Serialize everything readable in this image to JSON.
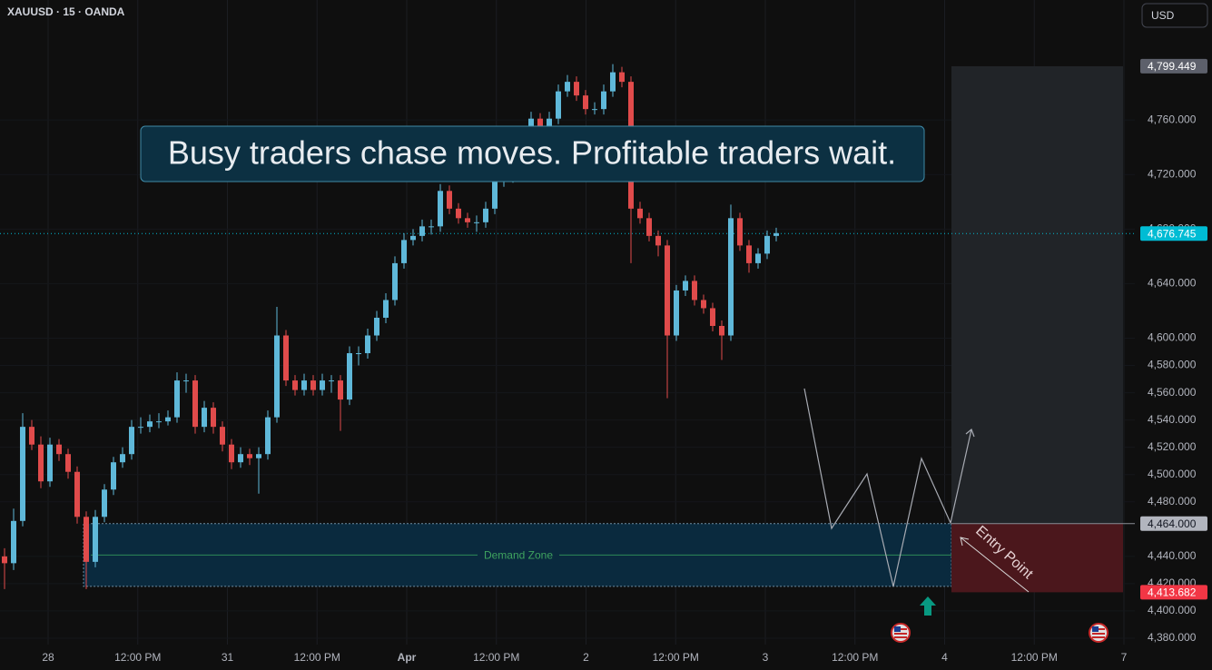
{
  "header": {
    "symbol": "XAUUSD · 15 · OANDA",
    "currency": "USD"
  },
  "headline": "Busy traders chase moves. Profitable traders wait.",
  "chart_data": {
    "type": "candlestick",
    "up_color": "#5fb8d9",
    "down_color": "#e04b4b",
    "ylim": [
      4370,
      4848
    ],
    "yticks": [
      {
        "value": 4380,
        "label": "4,380.000"
      },
      {
        "value": 4400,
        "label": "4,400.000"
      },
      {
        "value": 4420,
        "label": "4,420.000"
      },
      {
        "value": 4440,
        "label": "4,440.000"
      },
      {
        "value": 4480,
        "label": "4,480.000"
      },
      {
        "value": 4500,
        "label": "4,500.000"
      },
      {
        "value": 4520,
        "label": "4,520.000"
      },
      {
        "value": 4540,
        "label": "4,540.000"
      },
      {
        "value": 4560,
        "label": "4,560.000"
      },
      {
        "value": 4580,
        "label": "4,580.000"
      },
      {
        "value": 4600,
        "label": "4,600.000"
      },
      {
        "value": 4640,
        "label": "4,640.000"
      },
      {
        "value": 4680,
        "label": "4,680.000"
      },
      {
        "value": 4720,
        "label": "4,720.000"
      },
      {
        "value": 4760,
        "label": "4,760.000"
      }
    ],
    "x_labels": [
      "28",
      "12:00 PM",
      "31",
      "12:00 PM",
      "Apr",
      "12:00 PM",
      "2",
      "12:00 PM",
      "3",
      "12:00 PM",
      "4",
      "12:00 PM",
      "7"
    ],
    "grid": true,
    "current_price": {
      "value": 4676.745,
      "label": "4,676.745"
    },
    "target": {
      "value": 4799.449,
      "label": "4,799.449"
    },
    "entry": {
      "value": 4464,
      "label": "4,464.000"
    },
    "stop": {
      "value": 4413.682,
      "label": "4,413.682"
    },
    "entry_label": "Entry Point",
    "demand_zone": {
      "label": "Demand Zone",
      "top": 4464,
      "bottom": 4418
    },
    "ohlc": [
      [
        4440,
        4446,
        4416,
        4435
      ],
      [
        4435,
        4475,
        4430,
        4466
      ],
      [
        4466,
        4545,
        4462,
        4535
      ],
      [
        4535,
        4540,
        4518,
        4522
      ],
      [
        4522,
        4528,
        4490,
        4495
      ],
      [
        4495,
        4527,
        4491,
        4522
      ],
      [
        4522,
        4526,
        4510,
        4515
      ],
      [
        4515,
        4519,
        4497,
        4502
      ],
      [
        4502,
        4506,
        4464,
        4469
      ],
      [
        4469,
        4473,
        4416,
        4436
      ],
      [
        4436,
        4474,
        4432,
        4469
      ],
      [
        4469,
        4493,
        4465,
        4489
      ],
      [
        4489,
        4513,
        4485,
        4509
      ],
      [
        4509,
        4520,
        4505,
        4515
      ],
      [
        4515,
        4540,
        4511,
        4535
      ],
      [
        4535,
        4542,
        4530,
        4535
      ],
      [
        4535,
        4544,
        4531,
        4539
      ],
      [
        4539,
        4545,
        4534,
        4539
      ],
      [
        4539,
        4547,
        4536,
        4542
      ],
      [
        4542,
        4575,
        4538,
        4569
      ],
      [
        4569,
        4574,
        4560,
        4569
      ],
      [
        4569,
        4573,
        4530,
        4535
      ],
      [
        4535,
        4554,
        4531,
        4549
      ],
      [
        4549,
        4553,
        4530,
        4535
      ],
      [
        4535,
        4539,
        4517,
        4522
      ],
      [
        4522,
        4526,
        4504,
        4509
      ],
      [
        4509,
        4520,
        4505,
        4515
      ],
      [
        4515,
        4519,
        4507,
        4512
      ],
      [
        4512,
        4520,
        4486,
        4515
      ],
      [
        4515,
        4547,
        4511,
        4542
      ],
      [
        4542,
        4623,
        4538,
        4602
      ],
      [
        4602,
        4606,
        4565,
        4569
      ],
      [
        4569,
        4573,
        4558,
        4562
      ],
      [
        4562,
        4574,
        4558,
        4569
      ],
      [
        4569,
        4573,
        4558,
        4562
      ],
      [
        4562,
        4574,
        4558,
        4569
      ],
      [
        4569,
        4573,
        4560,
        4569
      ],
      [
        4569,
        4573,
        4532,
        4555
      ],
      [
        4555,
        4594,
        4551,
        4589
      ],
      [
        4589,
        4594,
        4580,
        4589
      ],
      [
        4589,
        4607,
        4585,
        4602
      ],
      [
        4602,
        4620,
        4598,
        4615
      ],
      [
        4615,
        4633,
        4611,
        4628
      ],
      [
        4628,
        4660,
        4624,
        4655
      ],
      [
        4655,
        4677,
        4651,
        4672
      ],
      [
        4672,
        4680,
        4668,
        4675
      ],
      [
        4675,
        4687,
        4671,
        4682
      ],
      [
        4682,
        4687,
        4676,
        4682
      ],
      [
        4682,
        4713,
        4678,
        4708
      ],
      [
        4708,
        4712,
        4691,
        4695
      ],
      [
        4695,
        4699,
        4684,
        4688
      ],
      [
        4688,
        4692,
        4681,
        4685
      ],
      [
        4685,
        4690,
        4678,
        4685
      ],
      [
        4685,
        4700,
        4681,
        4695
      ],
      [
        4695,
        4720,
        4691,
        4715
      ],
      [
        4715,
        4723,
        4711,
        4718
      ],
      [
        4718,
        4733,
        4714,
        4728
      ],
      [
        4728,
        4747,
        4724,
        4742
      ],
      [
        4742,
        4766,
        4738,
        4761
      ],
      [
        4761,
        4765,
        4750,
        4755
      ],
      [
        4755,
        4766,
        4751,
        4761
      ],
      [
        4761,
        4786,
        4757,
        4781
      ],
      [
        4781,
        4793,
        4777,
        4788
      ],
      [
        4788,
        4792,
        4774,
        4778
      ],
      [
        4778,
        4782,
        4764,
        4768
      ],
      [
        4768,
        4773,
        4764,
        4768
      ],
      [
        4768,
        4786,
        4764,
        4781
      ],
      [
        4781,
        4801,
        4777,
        4795
      ],
      [
        4795,
        4799,
        4784,
        4788
      ],
      [
        4788,
        4792,
        4655,
        4695
      ],
      [
        4695,
        4700,
        4684,
        4688
      ],
      [
        4688,
        4692,
        4671,
        4675
      ],
      [
        4675,
        4679,
        4660,
        4668
      ],
      [
        4668,
        4672,
        4556,
        4602
      ],
      [
        4602,
        4639,
        4598,
        4635
      ],
      [
        4635,
        4646,
        4631,
        4642
      ],
      [
        4642,
        4646,
        4624,
        4628
      ],
      [
        4628,
        4632,
        4618,
        4622
      ],
      [
        4622,
        4626,
        4605,
        4609
      ],
      [
        4609,
        4613,
        4584,
        4602
      ],
      [
        4602,
        4698,
        4598,
        4688
      ],
      [
        4688,
        4692,
        4664,
        4668
      ],
      [
        4668,
        4672,
        4648,
        4655
      ],
      [
        4655,
        4666,
        4651,
        4662
      ],
      [
        4662,
        4679,
        4658,
        4675
      ],
      [
        4675,
        4681,
        4671,
        4677
      ]
    ]
  }
}
